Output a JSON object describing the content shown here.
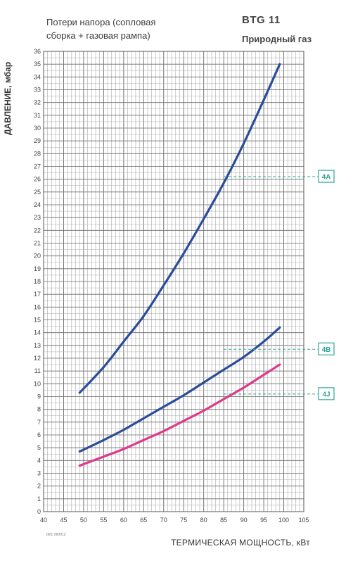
{
  "header": {
    "note": "Потери напора (сопловая сборка + газовая рампа)",
    "model": "BTG 11",
    "gas": "Природный газ",
    "code": "bt0c 060012"
  },
  "chart_data": {
    "type": "line",
    "xlabel": "ТЕРМИЧЕСКАЯ МОЩНОСТЬ, кВт",
    "ylabel": "ДАВЛЕНИЕ, мбар",
    "xlim": [
      40,
      105
    ],
    "ylim": [
      0,
      36
    ],
    "x_ticks": [
      40,
      45,
      50,
      55,
      60,
      65,
      70,
      75,
      80,
      85,
      90,
      95,
      100,
      105
    ],
    "y_ticks": [
      0,
      1,
      2,
      3,
      4,
      5,
      6,
      7,
      8,
      9,
      10,
      11,
      12,
      13,
      14,
      15,
      16,
      17,
      18,
      19,
      20,
      21,
      22,
      23,
      24,
      25,
      26,
      27,
      28,
      29,
      30,
      31,
      32,
      33,
      34,
      35,
      36
    ],
    "grid": true,
    "series": [
      {
        "name": "4A",
        "color": "#2b4c9b",
        "x": [
          49,
          55,
          60,
          65,
          70,
          75,
          80,
          85,
          90,
          95,
          99
        ],
        "y": [
          9.3,
          11.3,
          13.3,
          15.3,
          17.7,
          20.2,
          22.9,
          25.7,
          28.8,
          32.2,
          35.0
        ]
      },
      {
        "name": "4B",
        "color": "#2b4c9b",
        "x": [
          49,
          55,
          60,
          65,
          70,
          75,
          80,
          85,
          90,
          95,
          99
        ],
        "y": [
          4.7,
          5.6,
          6.4,
          7.3,
          8.2,
          9.1,
          10.1,
          11.1,
          12.1,
          13.3,
          14.4
        ]
      },
      {
        "name": "4J",
        "color": "#e0398b",
        "x": [
          49,
          55,
          60,
          65,
          70,
          75,
          80,
          85,
          90,
          95,
          99
        ],
        "y": [
          3.6,
          4.3,
          4.9,
          5.6,
          6.3,
          7.1,
          7.9,
          8.8,
          9.7,
          10.7,
          11.5
        ]
      }
    ],
    "callouts": [
      {
        "label": "4A",
        "y": 26.2
      },
      {
        "label": "4B",
        "y": 12.7
      },
      {
        "label": "4J",
        "y": 9.2
      }
    ]
  }
}
